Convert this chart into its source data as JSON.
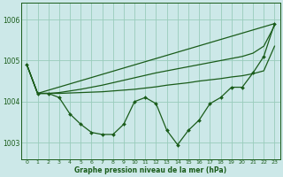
{
  "background_color": "#cce8e8",
  "grid_color": "#99ccbb",
  "line_color": "#1a5c1a",
  "xlabel": "Graphe pression niveau de la mer (hPa)",
  "xlim": [
    -0.5,
    23.5
  ],
  "ylim": [
    1002.6,
    1006.4
  ],
  "yticks": [
    1003,
    1004,
    1005,
    1006
  ],
  "xticks": [
    0,
    1,
    2,
    3,
    4,
    5,
    6,
    7,
    8,
    9,
    10,
    11,
    12,
    13,
    14,
    15,
    16,
    17,
    18,
    19,
    20,
    21,
    22,
    23
  ],
  "series_dotted": {
    "x": [
      0,
      1,
      2,
      3,
      4,
      5,
      6,
      7,
      8,
      9,
      10,
      11,
      12,
      13,
      14,
      15,
      16,
      17,
      18,
      19,
      20,
      21,
      22,
      23
    ],
    "y": [
      1004.9,
      1004.2,
      1004.2,
      1004.1,
      1003.7,
      1003.45,
      1003.25,
      1003.2,
      1003.2,
      1003.45,
      1004.0,
      1004.1,
      1003.95,
      1003.3,
      1002.95,
      1003.3,
      1003.55,
      1003.95,
      1004.1,
      1004.35,
      1004.35,
      1004.7,
      1005.1,
      1005.9
    ]
  },
  "series_line1": {
    "x": [
      0,
      1,
      2,
      3,
      4,
      5,
      6,
      7,
      8,
      9,
      10,
      11,
      12,
      13,
      14,
      15,
      16,
      17,
      18,
      19,
      20,
      21,
      22,
      23
    ],
    "y": [
      1004.9,
      1004.2,
      1004.2,
      1004.2,
      1004.21,
      1004.22,
      1004.23,
      1004.24,
      1004.26,
      1004.28,
      1004.3,
      1004.33,
      1004.36,
      1004.4,
      1004.43,
      1004.46,
      1004.5,
      1004.53,
      1004.56,
      1004.6,
      1004.63,
      1004.68,
      1004.75,
      1005.35
    ]
  },
  "series_line2": {
    "x": [
      0,
      1,
      2,
      3,
      4,
      5,
      6,
      7,
      8,
      9,
      10,
      11,
      12,
      13,
      14,
      15,
      16,
      17,
      18,
      19,
      20,
      21,
      22,
      23
    ],
    "y": [
      1004.9,
      1004.2,
      1004.2,
      1004.22,
      1004.26,
      1004.3,
      1004.35,
      1004.4,
      1004.46,
      1004.52,
      1004.58,
      1004.64,
      1004.7,
      1004.75,
      1004.8,
      1004.85,
      1004.9,
      1004.95,
      1005.0,
      1005.05,
      1005.1,
      1005.18,
      1005.35,
      1005.85
    ]
  },
  "series_line3": {
    "x": [
      0,
      1,
      23
    ],
    "y": [
      1004.9,
      1004.2,
      1005.9
    ]
  }
}
